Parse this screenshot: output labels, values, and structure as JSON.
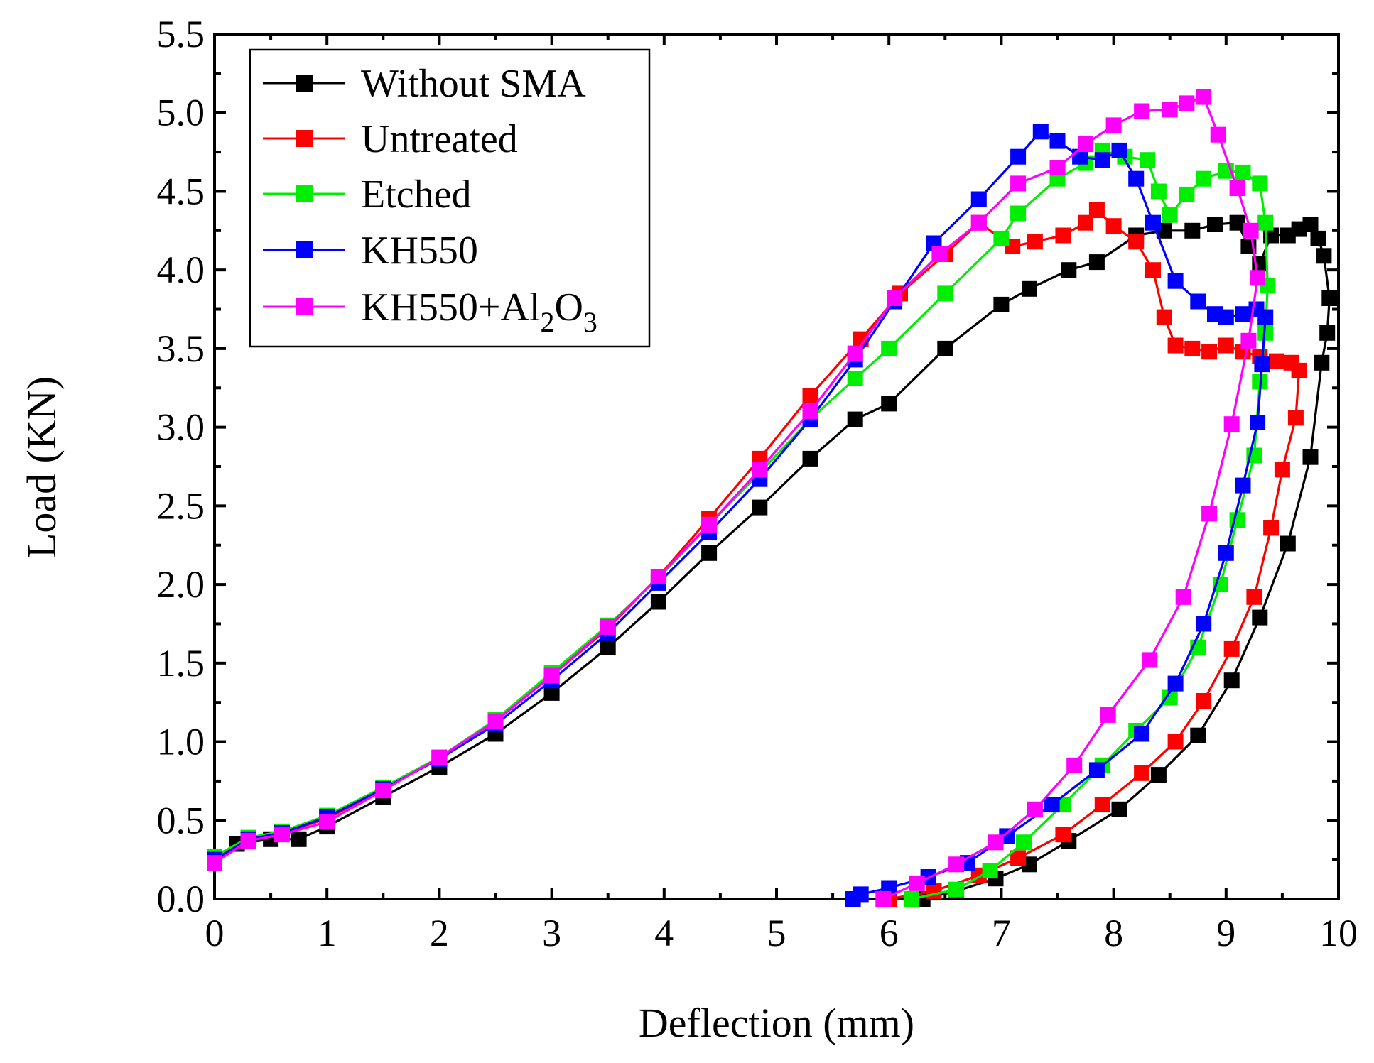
{
  "chart_data": {
    "type": "line",
    "title": "",
    "xlabel": "Deflection (mm)",
    "ylabel": "Load (KN)",
    "xlim": [
      0,
      10
    ],
    "ylim": [
      0,
      5.5
    ],
    "xticks": [
      "0",
      "1",
      "2",
      "3",
      "4",
      "5",
      "6",
      "7",
      "8",
      "9",
      "10"
    ],
    "yticks": [
      "0.0",
      "0.5",
      "1.0",
      "1.5",
      "2.0",
      "2.5",
      "3.0",
      "3.5",
      "4.0",
      "4.5",
      "5.0",
      "5.5"
    ],
    "grid": false,
    "legend_position": "top-left",
    "series": [
      {
        "name": "Without SMA",
        "label_main": "Without SMA",
        "color": "#000000",
        "marker": "square",
        "points": [
          [
            0,
            0.25
          ],
          [
            0.2,
            0.35
          ],
          [
            0.5,
            0.38
          ],
          [
            0.75,
            0.38
          ],
          [
            1.0,
            0.46
          ],
          [
            1.5,
            0.65
          ],
          [
            2.0,
            0.84
          ],
          [
            2.5,
            1.05
          ],
          [
            3.0,
            1.31
          ],
          [
            3.5,
            1.6
          ],
          [
            3.95,
            1.89
          ],
          [
            4.4,
            2.2
          ],
          [
            4.85,
            2.49
          ],
          [
            5.3,
            2.8
          ],
          [
            5.7,
            3.05
          ],
          [
            6.0,
            3.15
          ],
          [
            6.5,
            3.5
          ],
          [
            7.0,
            3.78
          ],
          [
            7.25,
            3.88
          ],
          [
            7.6,
            4.0
          ],
          [
            7.85,
            4.05
          ],
          [
            8.2,
            4.22
          ],
          [
            8.45,
            4.25
          ],
          [
            8.7,
            4.25
          ],
          [
            8.9,
            4.29
          ],
          [
            9.1,
            4.3
          ],
          [
            9.2,
            4.15
          ],
          [
            9.3,
            4.04
          ],
          [
            9.4,
            4.22
          ],
          [
            9.55,
            4.22
          ],
          [
            9.65,
            4.26
          ],
          [
            9.75,
            4.29
          ],
          [
            9.82,
            4.2
          ],
          [
            9.87,
            4.09
          ],
          [
            9.92,
            3.82
          ],
          [
            9.9,
            3.6
          ],
          [
            9.85,
            3.41
          ],
          [
            9.75,
            2.81
          ],
          [
            9.55,
            2.26
          ],
          [
            9.3,
            1.79
          ],
          [
            9.05,
            1.39
          ],
          [
            8.75,
            1.04
          ],
          [
            8.4,
            0.79
          ],
          [
            8.05,
            0.57
          ],
          [
            7.6,
            0.37
          ],
          [
            7.25,
            0.22
          ],
          [
            6.95,
            0.13
          ],
          [
            6.6,
            0.05
          ],
          [
            6.3,
            0.0
          ]
        ]
      },
      {
        "name": "Untreated",
        "label_main": "Untreated",
        "color": "#ff0000",
        "marker": "square",
        "points": [
          [
            0,
            0.25
          ],
          [
            0.3,
            0.38
          ],
          [
            0.6,
            0.42
          ],
          [
            1.0,
            0.51
          ],
          [
            1.5,
            0.7
          ],
          [
            2.0,
            0.9
          ],
          [
            2.5,
            1.13
          ],
          [
            3.0,
            1.42
          ],
          [
            3.5,
            1.72
          ],
          [
            3.95,
            2.05
          ],
          [
            4.4,
            2.42
          ],
          [
            4.85,
            2.8
          ],
          [
            5.3,
            3.2
          ],
          [
            5.75,
            3.56
          ],
          [
            6.1,
            3.85
          ],
          [
            6.5,
            4.1
          ],
          [
            6.8,
            4.3
          ],
          [
            7.1,
            4.15
          ],
          [
            7.3,
            4.18
          ],
          [
            7.55,
            4.22
          ],
          [
            7.75,
            4.3
          ],
          [
            7.85,
            4.38
          ],
          [
            8.0,
            4.28
          ],
          [
            8.2,
            4.18
          ],
          [
            8.35,
            4.0
          ],
          [
            8.45,
            3.7
          ],
          [
            8.55,
            3.52
          ],
          [
            8.7,
            3.5
          ],
          [
            8.85,
            3.48
          ],
          [
            9.0,
            3.52
          ],
          [
            9.15,
            3.48
          ],
          [
            9.3,
            3.45
          ],
          [
            9.45,
            3.42
          ],
          [
            9.58,
            3.41
          ],
          [
            9.65,
            3.36
          ],
          [
            9.62,
            3.06
          ],
          [
            9.5,
            2.73
          ],
          [
            9.4,
            2.36
          ],
          [
            9.25,
            1.92
          ],
          [
            9.05,
            1.59
          ],
          [
            8.8,
            1.26
          ],
          [
            8.55,
            1.0
          ],
          [
            8.25,
            0.8
          ],
          [
            7.9,
            0.6
          ],
          [
            7.55,
            0.41
          ],
          [
            7.15,
            0.26
          ],
          [
            6.8,
            0.15
          ],
          [
            6.4,
            0.05
          ],
          [
            6.0,
            0.0
          ]
        ]
      },
      {
        "name": "Etched",
        "label_main": "Etched",
        "color": "#00ee00",
        "marker": "square",
        "points": [
          [
            0,
            0.27
          ],
          [
            0.3,
            0.39
          ],
          [
            0.6,
            0.43
          ],
          [
            1.0,
            0.53
          ],
          [
            1.5,
            0.71
          ],
          [
            2.0,
            0.9
          ],
          [
            2.5,
            1.14
          ],
          [
            3.0,
            1.44
          ],
          [
            3.5,
            1.74
          ],
          [
            3.95,
            2.04
          ],
          [
            4.4,
            2.38
          ],
          [
            4.85,
            2.71
          ],
          [
            5.3,
            3.05
          ],
          [
            5.7,
            3.31
          ],
          [
            6.0,
            3.5
          ],
          [
            6.5,
            3.85
          ],
          [
            7.0,
            4.2
          ],
          [
            7.15,
            4.36
          ],
          [
            7.5,
            4.58
          ],
          [
            7.75,
            4.68
          ],
          [
            7.9,
            4.76
          ],
          [
            8.1,
            4.72
          ],
          [
            8.3,
            4.7
          ],
          [
            8.4,
            4.5
          ],
          [
            8.5,
            4.35
          ],
          [
            8.65,
            4.48
          ],
          [
            8.8,
            4.58
          ],
          [
            9.0,
            4.63
          ],
          [
            9.15,
            4.62
          ],
          [
            9.3,
            4.55
          ],
          [
            9.35,
            4.3
          ],
          [
            9.37,
            3.9
          ],
          [
            9.35,
            3.6
          ],
          [
            9.3,
            3.29
          ],
          [
            9.25,
            2.82
          ],
          [
            9.1,
            2.41
          ],
          [
            8.95,
            2.0
          ],
          [
            8.75,
            1.6
          ],
          [
            8.5,
            1.28
          ],
          [
            8.2,
            1.07
          ],
          [
            7.9,
            0.85
          ],
          [
            7.55,
            0.6
          ],
          [
            7.2,
            0.36
          ],
          [
            6.9,
            0.18
          ],
          [
            6.6,
            0.06
          ],
          [
            6.2,
            0.0
          ]
        ]
      },
      {
        "name": "KH550",
        "label_main": "KH550",
        "color": "#0000ff",
        "marker": "square",
        "points": [
          [
            0,
            0.25
          ],
          [
            0.3,
            0.38
          ],
          [
            0.6,
            0.42
          ],
          [
            1.0,
            0.52
          ],
          [
            1.5,
            0.7
          ],
          [
            2.0,
            0.89
          ],
          [
            2.5,
            1.11
          ],
          [
            3.0,
            1.39
          ],
          [
            3.5,
            1.69
          ],
          [
            3.95,
            2.01
          ],
          [
            4.4,
            2.33
          ],
          [
            4.85,
            2.67
          ],
          [
            5.3,
            3.05
          ],
          [
            5.7,
            3.43
          ],
          [
            6.05,
            3.8
          ],
          [
            6.4,
            4.17
          ],
          [
            6.8,
            4.45
          ],
          [
            7.15,
            4.72
          ],
          [
            7.35,
            4.88
          ],
          [
            7.5,
            4.82
          ],
          [
            7.7,
            4.72
          ],
          [
            7.9,
            4.7
          ],
          [
            8.05,
            4.76
          ],
          [
            8.2,
            4.58
          ],
          [
            8.35,
            4.3
          ],
          [
            8.55,
            3.93
          ],
          [
            8.75,
            3.8
          ],
          [
            8.9,
            3.72
          ],
          [
            9.0,
            3.7
          ],
          [
            9.15,
            3.72
          ],
          [
            9.27,
            3.75
          ],
          [
            9.35,
            3.7
          ],
          [
            9.32,
            3.4
          ],
          [
            9.28,
            3.03
          ],
          [
            9.15,
            2.63
          ],
          [
            9.0,
            2.2
          ],
          [
            8.8,
            1.75
          ],
          [
            8.55,
            1.37
          ],
          [
            8.25,
            1.05
          ],
          [
            7.85,
            0.82
          ],
          [
            7.45,
            0.6
          ],
          [
            7.05,
            0.4
          ],
          [
            6.7,
            0.23
          ],
          [
            6.35,
            0.14
          ],
          [
            6.0,
            0.07
          ],
          [
            5.75,
            0.03
          ],
          [
            5.68,
            0.0
          ]
        ]
      },
      {
        "name": "KH550+Al2O3",
        "label_main": "KH550+Al",
        "label_sub1": "2",
        "label_mid": "O",
        "label_sub2": "3",
        "color": "#ff00ff",
        "marker": "square",
        "points": [
          [
            0,
            0.23
          ],
          [
            0.3,
            0.37
          ],
          [
            0.6,
            0.41
          ],
          [
            1.0,
            0.49
          ],
          [
            1.5,
            0.69
          ],
          [
            2.0,
            0.9
          ],
          [
            2.5,
            1.13
          ],
          [
            3.0,
            1.42
          ],
          [
            3.5,
            1.73
          ],
          [
            3.95,
            2.05
          ],
          [
            4.4,
            2.38
          ],
          [
            4.85,
            2.73
          ],
          [
            5.3,
            3.1
          ],
          [
            5.7,
            3.47
          ],
          [
            6.05,
            3.82
          ],
          [
            6.45,
            4.1
          ],
          [
            6.8,
            4.3
          ],
          [
            7.15,
            4.55
          ],
          [
            7.5,
            4.65
          ],
          [
            7.75,
            4.8
          ],
          [
            8.0,
            4.92
          ],
          [
            8.25,
            5.01
          ],
          [
            8.5,
            5.02
          ],
          [
            8.65,
            5.06
          ],
          [
            8.8,
            5.1
          ],
          [
            8.93,
            4.86
          ],
          [
            9.1,
            4.52
          ],
          [
            9.22,
            4.25
          ],
          [
            9.28,
            3.95
          ],
          [
            9.2,
            3.55
          ],
          [
            9.05,
            3.02
          ],
          [
            8.85,
            2.45
          ],
          [
            8.62,
            1.92
          ],
          [
            8.32,
            1.52
          ],
          [
            7.95,
            1.17
          ],
          [
            7.65,
            0.85
          ],
          [
            7.3,
            0.57
          ],
          [
            6.95,
            0.36
          ],
          [
            6.6,
            0.22
          ],
          [
            6.25,
            0.1
          ],
          [
            5.95,
            0.0
          ]
        ]
      }
    ]
  }
}
